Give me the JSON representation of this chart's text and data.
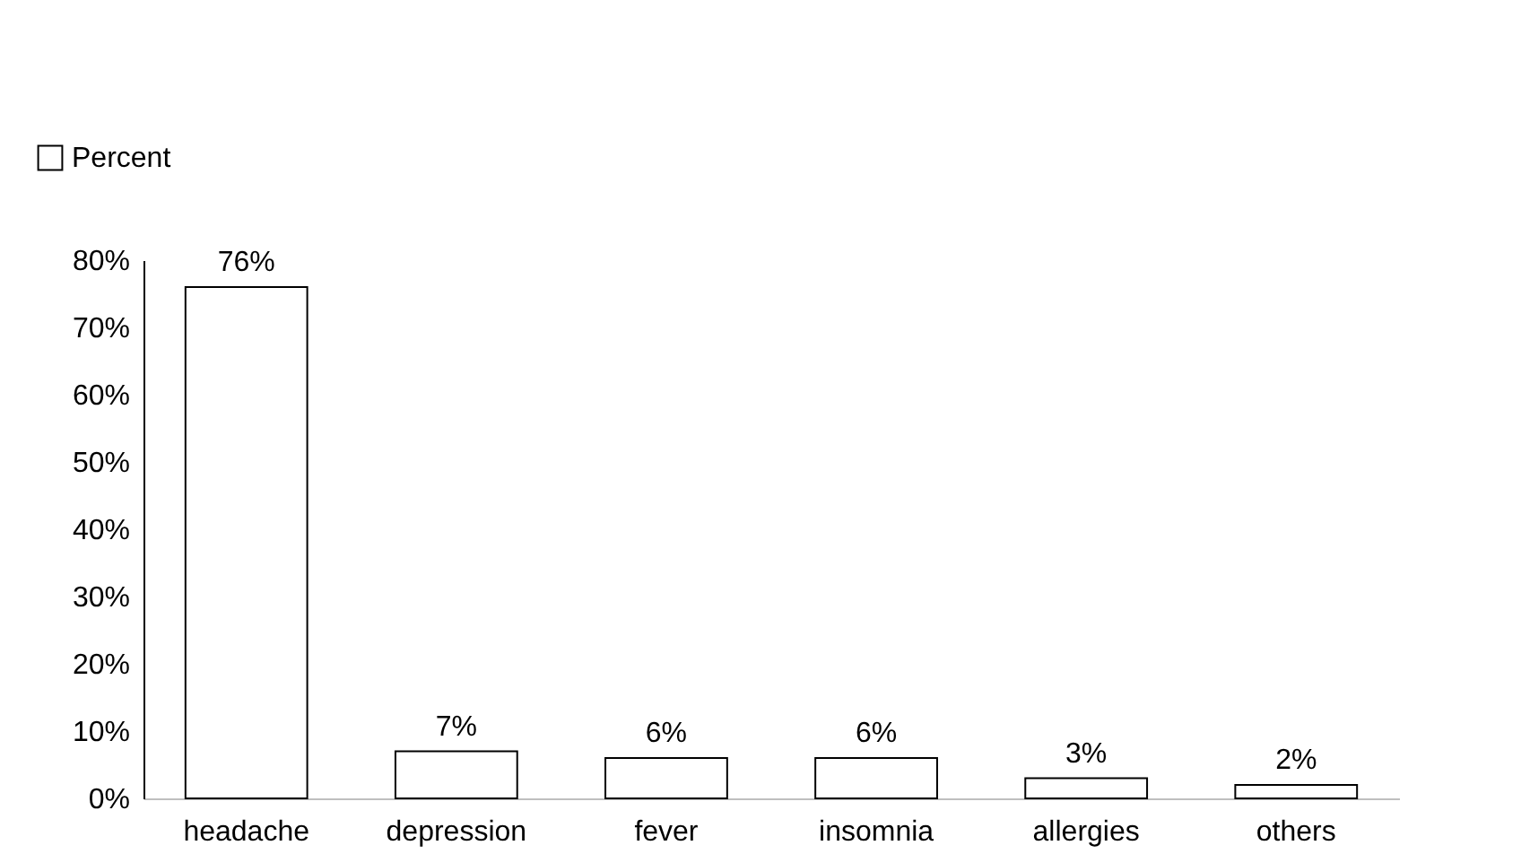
{
  "chart_data": {
    "type": "bar",
    "categories": [
      "headache",
      "depression",
      "fever",
      "insomnia",
      "allergies",
      "others"
    ],
    "series": [
      {
        "name": "Percent",
        "color": "#ffffff",
        "values": [
          76,
          7,
          6,
          6,
          3,
          2
        ],
        "value_labels": [
          "76%",
          "7%",
          "6%",
          "6%",
          "3%",
          "2%"
        ]
      }
    ],
    "ylim": [
      0,
      80
    ],
    "yticks": [
      {
        "value": 0,
        "label": "0%"
      },
      {
        "value": 10,
        "label": "10%"
      },
      {
        "value": 20,
        "label": "20%"
      },
      {
        "value": 30,
        "label": "30%"
      },
      {
        "value": 40,
        "label": "40%"
      },
      {
        "value": 50,
        "label": "50%"
      },
      {
        "value": 60,
        "label": "60%"
      },
      {
        "value": 70,
        "label": "70%"
      },
      {
        "value": 80,
        "label": "80%"
      }
    ],
    "grid": false,
    "legend": "top left"
  }
}
